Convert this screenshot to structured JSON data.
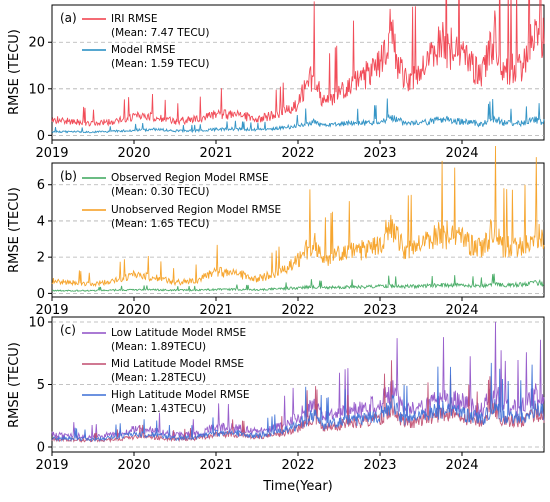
{
  "figure": {
    "x_axis_label": "Time(Year)",
    "year_ticks": [
      "2019",
      "2020",
      "2021",
      "2022",
      "2023",
      "2024"
    ]
  },
  "chart_data": [
    {
      "type": "line",
      "panel_label": "(a)",
      "ylabel": "RMSE (TECU)",
      "xlim": [
        2019.0,
        2025.0
      ],
      "ylim": [
        -1,
        28
      ],
      "yticks": [
        "0",
        "10",
        "20"
      ],
      "grid": "horizontal dashed",
      "legend_position": "top-left",
      "x": [
        2019.0,
        2019.25,
        2019.5,
        2019.75,
        2020.0,
        2020.25,
        2020.5,
        2020.75,
        2021.0,
        2021.25,
        2021.5,
        2021.75,
        2022.0,
        2022.1,
        2022.2,
        2022.3,
        2022.5,
        2022.75,
        2023.0,
        2023.15,
        2023.2,
        2023.3,
        2023.5,
        2023.75,
        2024.0,
        2024.25,
        2024.4,
        2024.5,
        2024.75,
        2024.9,
        2025.0
      ],
      "series": [
        {
          "name": "IRI RMSE",
          "legend_line1": "IRI RMSE",
          "legend_line2": "(Mean: 7.47 TECU)",
          "color": "#f03a47",
          "values": [
            3.5,
            3.0,
            2.5,
            3.0,
            4.0,
            4.0,
            3.0,
            3.5,
            4.5,
            4.5,
            3.5,
            4.5,
            6.5,
            11.0,
            13.0,
            7.0,
            9.0,
            12.0,
            16.0,
            24.0,
            17.0,
            12.0,
            13.0,
            20.0,
            17.0,
            13.0,
            22.0,
            14.0,
            15.0,
            25.0,
            21.0
          ]
        },
        {
          "name": "Model RMSE",
          "legend_line1": "Model RMSE",
          "legend_line2": "(Mean: 1.59 TECU)",
          "color": "#1f8ac0",
          "values": [
            0.8,
            0.8,
            0.7,
            0.9,
            1.1,
            1.3,
            1.0,
            1.0,
            1.3,
            1.4,
            1.2,
            1.5,
            2.0,
            2.6,
            3.0,
            2.0,
            2.4,
            2.6,
            3.0,
            4.0,
            3.5,
            2.5,
            2.7,
            3.5,
            3.0,
            2.4,
            3.8,
            2.6,
            2.6,
            3.4,
            2.8
          ]
        }
      ]
    },
    {
      "type": "line",
      "panel_label": "(b)",
      "ylabel": "RMSE (TECU)",
      "xlim": [
        2019.0,
        2025.0
      ],
      "ylim": [
        -0.2,
        7.2
      ],
      "yticks": [
        "0",
        "2",
        "4",
        "6"
      ],
      "grid": "horizontal dashed",
      "legend_position": "top-left",
      "x": [
        2019.0,
        2019.25,
        2019.5,
        2019.75,
        2020.0,
        2020.25,
        2020.5,
        2020.75,
        2021.0,
        2021.25,
        2021.5,
        2021.75,
        2022.0,
        2022.1,
        2022.2,
        2022.3,
        2022.5,
        2022.75,
        2023.0,
        2023.15,
        2023.2,
        2023.3,
        2023.5,
        2023.75,
        2024.0,
        2024.25,
        2024.4,
        2024.5,
        2024.75,
        2024.9,
        2025.0
      ],
      "series": [
        {
          "name": "Observed Region Model RMSE",
          "legend_line1": "Observed Region Model RMSE",
          "legend_line2": "(Mean: 0.30 TECU)",
          "color": "#3aa55a",
          "values": [
            0.15,
            0.15,
            0.15,
            0.18,
            0.2,
            0.2,
            0.18,
            0.18,
            0.22,
            0.22,
            0.2,
            0.25,
            0.3,
            0.35,
            0.35,
            0.3,
            0.35,
            0.35,
            0.4,
            0.45,
            0.42,
            0.38,
            0.4,
            0.45,
            0.45,
            0.4,
            0.5,
            0.45,
            0.5,
            0.6,
            0.55
          ]
        },
        {
          "name": "Unobserved Region Model RMSE",
          "legend_line1": "Unobserved Region Model RMSE",
          "legend_line2": "(Mean: 1.65 TECU)",
          "color": "#f59c1a",
          "values": [
            0.7,
            0.6,
            0.5,
            0.7,
            1.0,
            0.9,
            0.6,
            0.7,
            1.2,
            1.1,
            0.8,
            1.1,
            1.8,
            2.4,
            2.8,
            1.8,
            2.2,
            2.4,
            2.8,
            4.0,
            3.2,
            2.4,
            2.6,
            3.3,
            3.0,
            2.4,
            3.8,
            2.6,
            2.6,
            3.4,
            3.0
          ]
        }
      ]
    },
    {
      "type": "line",
      "panel_label": "(c)",
      "ylabel": "RMSE (TECU)",
      "xlim": [
        2019.0,
        2025.0
      ],
      "ylim": [
        -0.4,
        10.4
      ],
      "yticks": [
        "0",
        "5",
        "10"
      ],
      "grid": "horizontal dashed",
      "legend_position": "top-left",
      "x": [
        2019.0,
        2019.25,
        2019.5,
        2019.75,
        2020.0,
        2020.25,
        2020.5,
        2020.75,
        2021.0,
        2021.25,
        2021.5,
        2021.75,
        2022.0,
        2022.1,
        2022.2,
        2022.3,
        2022.5,
        2022.75,
        2023.0,
        2023.15,
        2023.2,
        2023.3,
        2023.5,
        2023.75,
        2024.0,
        2024.25,
        2024.4,
        2024.5,
        2024.75,
        2024.9,
        2025.0
      ],
      "series": [
        {
          "name": "Low Latitude Model RMSE",
          "legend_line1": "Low Latitude Model RMSE",
          "legend_line2": "(Mean: 1.89TECU)",
          "color": "#8e4fc6",
          "values": [
            1.0,
            0.9,
            0.8,
            1.0,
            1.4,
            1.3,
            1.0,
            1.0,
            1.6,
            1.5,
            1.2,
            1.6,
            2.3,
            3.0,
            3.4,
            2.3,
            2.7,
            3.0,
            3.4,
            4.8,
            4.0,
            2.9,
            3.1,
            4.0,
            3.6,
            2.9,
            4.6,
            3.1,
            3.2,
            4.2,
            3.6
          ]
        },
        {
          "name": "Mid Latitude Model RMSE",
          "legend_line1": "Mid Latitude Model RMSE",
          "legend_line2": "(Mean: 1.28TECU)",
          "color": "#c04b6e",
          "values": [
            0.6,
            0.6,
            0.5,
            0.6,
            0.8,
            0.8,
            0.6,
            0.7,
            1.0,
            1.0,
            0.8,
            1.0,
            1.5,
            2.0,
            2.3,
            1.5,
            1.8,
            2.0,
            2.3,
            3.2,
            2.7,
            1.9,
            2.1,
            2.7,
            2.4,
            1.9,
            3.0,
            2.1,
            2.1,
            2.8,
            2.4
          ]
        },
        {
          "name": "High Latitude Model RMSE",
          "legend_line1": "High Latitude Model RMSE",
          "legend_line2": "(Mean: 1.43TECU)",
          "color": "#3b6fd6",
          "values": [
            0.7,
            0.7,
            0.6,
            0.8,
            1.0,
            1.0,
            0.7,
            0.8,
            1.1,
            1.1,
            0.9,
            1.2,
            1.7,
            2.2,
            2.6,
            1.7,
            2.0,
            2.3,
            2.6,
            3.6,
            3.0,
            2.2,
            2.4,
            3.0,
            2.7,
            2.2,
            3.4,
            2.4,
            2.4,
            3.2,
            2.7
          ]
        }
      ]
    }
  ]
}
